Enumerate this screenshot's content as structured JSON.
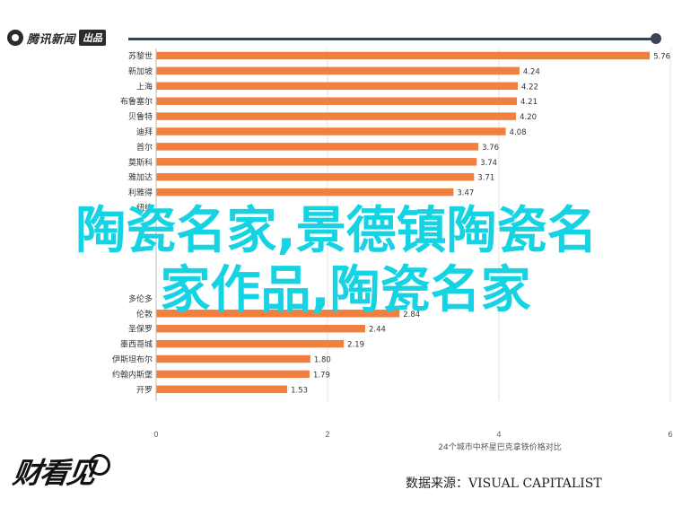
{
  "header": {
    "logo_text": "腾讯新闻",
    "logo_badge": "出品"
  },
  "overlay": {
    "line1": "陶瓷名家,景德镇陶瓷名",
    "line2": "家作品,陶瓷名家"
  },
  "brand": {
    "text": "财看见"
  },
  "source": "数据来源：VISUAL CAPITALIST",
  "chart_data": {
    "type": "bar",
    "orientation": "horizontal",
    "categories": [
      "苏黎世",
      "新加坡",
      "上海",
      "布鲁塞尔",
      "贝鲁特",
      "迪拜",
      "首尔",
      "莫斯科",
      "雅加达",
      "利雅得",
      "纽约",
      "",
      "",
      "",
      "",
      "",
      "多伦多",
      "伦敦",
      "圣保罗",
      "墨西哥城",
      "伊斯坦布尔",
      "约翰内斯堡",
      "开罗"
    ],
    "values": [
      5.76,
      4.24,
      4.22,
      4.21,
      4.2,
      4.08,
      3.76,
      3.74,
      3.71,
      3.47,
      null,
      null,
      null,
      null,
      null,
      null,
      null,
      2.84,
      2.44,
      2.19,
      1.8,
      1.79,
      1.53
    ],
    "value_labels": [
      "5.76",
      "4.24",
      "4.22",
      "4.21",
      "4.20",
      "4.08",
      "3.76",
      "3.74",
      "3.71",
      "3.47",
      "",
      "",
      "",
      "",
      "",
      "",
      "",
      "2.84",
      "2.44",
      "2.19",
      "1.80",
      "1.79",
      "1.53"
    ],
    "xlim": [
      0,
      6
    ],
    "xticks": [
      0,
      2,
      4,
      6
    ],
    "xlabel": "24个城市中杯星巴克拿铁价格对比",
    "bar_color": "#f0803f",
    "grid": true
  }
}
